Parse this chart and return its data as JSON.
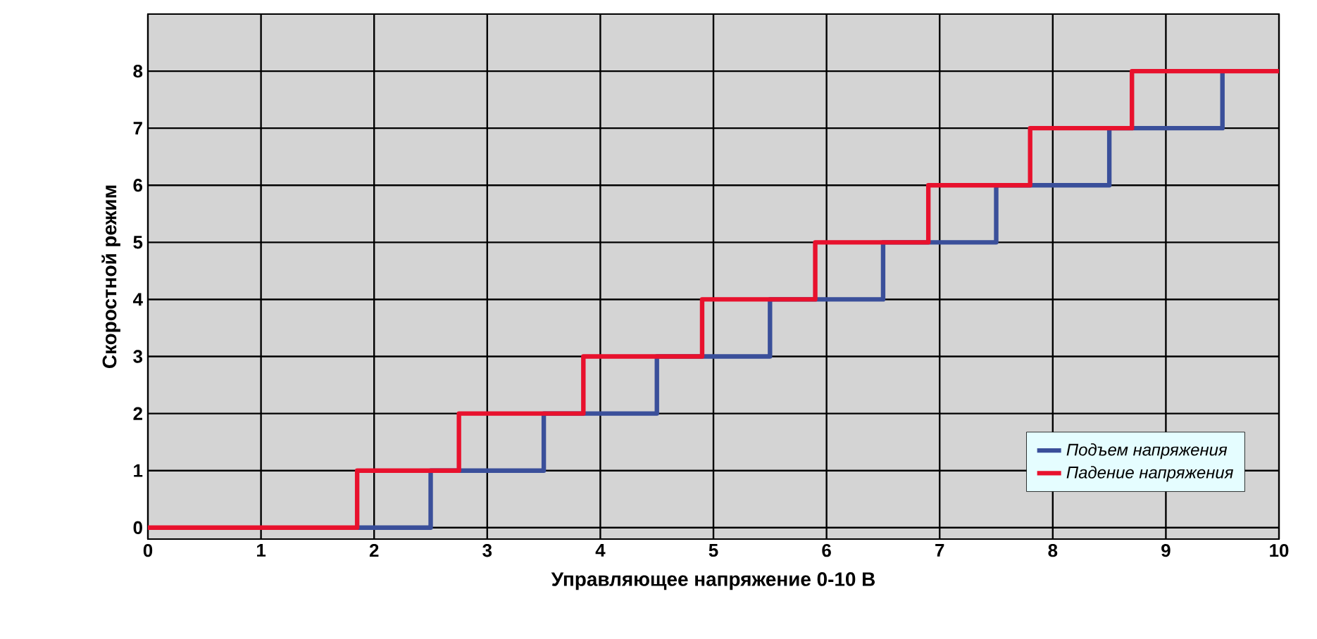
{
  "chart_data": {
    "type": "step",
    "xlabel": "Управляющее напряжение 0-10 В",
    "ylabel": "Скоростной режим",
    "xlim": [
      0,
      10
    ],
    "ylim": [
      -0.2,
      9
    ],
    "xticks": [
      0,
      1,
      2,
      3,
      4,
      5,
      6,
      7,
      8,
      9,
      10
    ],
    "yticks": [
      0,
      1,
      2,
      3,
      4,
      5,
      6,
      7,
      8
    ],
    "grid": true,
    "legend": "bottom right",
    "series": [
      {
        "name": "Подъем напряжения",
        "color": "#3a4f9a",
        "x": [
          1.85,
          2.5,
          3.5,
          4.5,
          5.5,
          6.5,
          7.5,
          8.5,
          9.5
        ],
        "values": [
          0,
          1,
          2,
          3,
          4,
          5,
          6,
          7,
          8
        ]
      },
      {
        "name": "Падение напряжения",
        "color": "#e8112d",
        "x": [
          0,
          1.85,
          2.75,
          3.85,
          4.9,
          5.9,
          6.9,
          7.8,
          8.7,
          10
        ],
        "values": [
          0,
          1,
          2,
          3,
          4,
          5,
          6,
          7,
          8,
          8
        ]
      }
    ]
  }
}
